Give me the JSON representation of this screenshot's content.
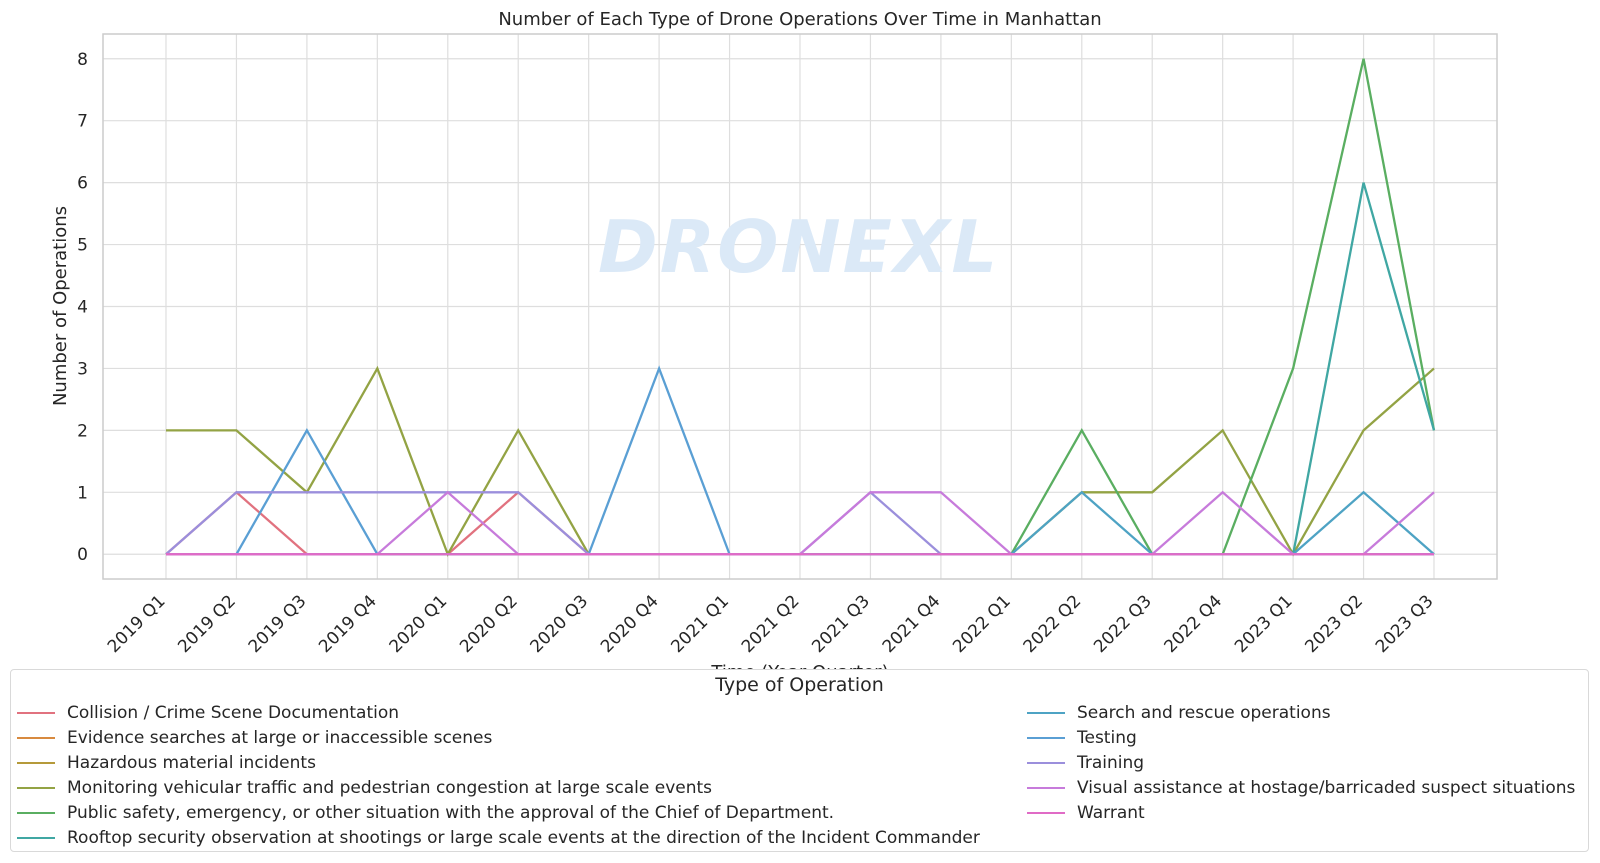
{
  "chart_data": {
    "type": "line",
    "title": "Number of Each Type of Drone Operations Over Time in Manhattan",
    "xlabel": "Time (Year Quarter)",
    "ylabel": "Number of Operations",
    "ylim": [
      -0.4,
      8.4
    ],
    "yticks": [
      0,
      1,
      2,
      3,
      4,
      5,
      6,
      7,
      8
    ],
    "grid": true,
    "legend_title": "Type of Operation",
    "legend_placement": "bottom",
    "watermark": "DRONEXL",
    "categories": [
      "2019 Q1",
      "2019 Q2",
      "2019 Q3",
      "2019 Q4",
      "2020 Q1",
      "2020 Q2",
      "2020 Q3",
      "2020 Q4",
      "2021 Q1",
      "2021 Q2",
      "2021 Q3",
      "2021 Q4",
      "2022 Q1",
      "2022 Q2",
      "2022 Q3",
      "2022 Q4",
      "2023 Q1",
      "2023 Q2",
      "2023 Q3"
    ],
    "series": [
      {
        "name": "Collision / Crime Scene Documentation",
        "color": "#e1727f",
        "values": [
          0,
          1,
          0,
          0,
          0,
          1,
          0,
          0,
          0,
          0,
          0,
          0,
          0,
          0,
          0,
          0,
          0,
          0,
          0
        ]
      },
      {
        "name": "Evidence searches at large or inaccessible scenes",
        "color": "#d88a3f",
        "values": [
          0,
          0,
          0,
          0,
          0,
          0,
          0,
          0,
          0,
          0,
          0,
          0,
          0,
          0,
          0,
          0,
          0,
          0,
          0
        ]
      },
      {
        "name": "Hazardous material incidents",
        "color": "#b59a3a",
        "values": [
          0,
          0,
          0,
          0,
          0,
          0,
          0,
          0,
          0,
          0,
          0,
          0,
          0,
          0,
          0,
          0,
          0,
          0,
          0
        ]
      },
      {
        "name": "Monitoring vehicular traffic and pedestrian congestion at large scale events",
        "color": "#93a344",
        "values": [
          2,
          2,
          1,
          3,
          0,
          2,
          0,
          0,
          0,
          0,
          0,
          0,
          0,
          1,
          1,
          2,
          0,
          2,
          3
        ]
      },
      {
        "name": "Public safety, emergency, or other situation with the approval of the Chief of Department.",
        "color": "#5aae61",
        "values": [
          0,
          0,
          0,
          0,
          0,
          0,
          0,
          0,
          0,
          0,
          0,
          0,
          0,
          2,
          0,
          0,
          3,
          8,
          2
        ]
      },
      {
        "name": "Rooftop security observation at shootings or large scale events at the direction of the Incident Commander",
        "color": "#40a7a3",
        "values": [
          0,
          0,
          0,
          0,
          0,
          0,
          0,
          0,
          0,
          0,
          0,
          0,
          0,
          0,
          0,
          0,
          0,
          6,
          2
        ]
      },
      {
        "name": "Search and rescue operations",
        "color": "#4ea3c4",
        "values": [
          0,
          0,
          0,
          0,
          0,
          0,
          0,
          0,
          0,
          0,
          0,
          0,
          0,
          1,
          0,
          0,
          0,
          1,
          0
        ]
      },
      {
        "name": "Testing",
        "color": "#5a9fd4",
        "values": [
          0,
          0,
          2,
          0,
          0,
          0,
          0,
          3,
          0,
          0,
          0,
          0,
          0,
          0,
          0,
          0,
          0,
          0,
          0
        ]
      },
      {
        "name": "Training",
        "color": "#9b8fdc",
        "values": [
          0,
          1,
          1,
          1,
          1,
          1,
          0,
          0,
          0,
          0,
          1,
          0,
          0,
          0,
          0,
          0,
          0,
          0,
          0
        ]
      },
      {
        "name": "Visual assistance at hostage/barricaded suspect situations",
        "color": "#c77bdb",
        "values": [
          0,
          0,
          0,
          0,
          1,
          0,
          0,
          0,
          0,
          0,
          1,
          1,
          0,
          0,
          0,
          1,
          0,
          0,
          1
        ]
      },
      {
        "name": "Warrant",
        "color": "#e06bc6",
        "values": [
          0,
          0,
          0,
          0,
          0,
          0,
          0,
          0,
          0,
          0,
          0,
          0,
          0,
          0,
          0,
          0,
          0,
          0,
          0
        ]
      }
    ]
  }
}
